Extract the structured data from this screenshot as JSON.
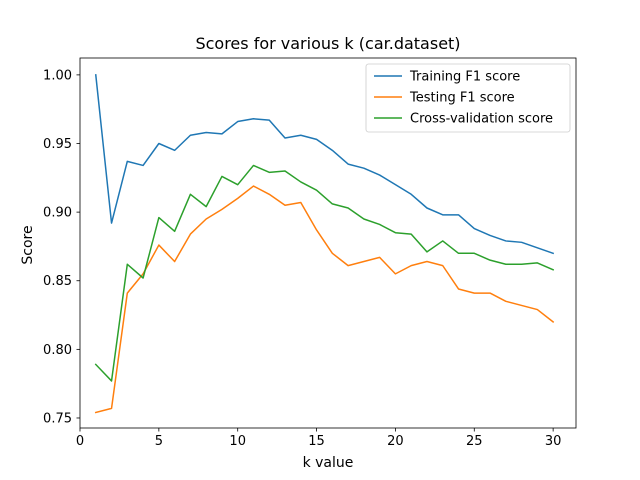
{
  "chart_data": {
    "type": "line",
    "title": "Scores for various k (car.dataset)",
    "xlabel": "k value",
    "ylabel": "Score",
    "xlim": [
      0,
      31.45
    ],
    "ylim": [
      0.7427,
      1.0123
    ],
    "xticks": [
      0,
      5,
      10,
      15,
      20,
      25,
      30
    ],
    "yticks": [
      0.75,
      0.8,
      0.85,
      0.9,
      0.95,
      1.0
    ],
    "ytick_labels": [
      "0.75",
      "0.80",
      "0.85",
      "0.90",
      "0.95",
      "1.00"
    ],
    "legend_position": "top-right",
    "grid": false,
    "x": [
      1,
      2,
      3,
      4,
      5,
      6,
      7,
      8,
      9,
      10,
      11,
      12,
      13,
      14,
      15,
      16,
      17,
      18,
      19,
      20,
      21,
      22,
      23,
      24,
      25,
      26,
      27,
      28,
      29,
      30
    ],
    "series": [
      {
        "name": "Training F1 score",
        "color": "#1f77b4",
        "values": [
          1.0,
          0.892,
          0.937,
          0.934,
          0.95,
          0.945,
          0.956,
          0.958,
          0.957,
          0.966,
          0.968,
          0.967,
          0.954,
          0.956,
          0.953,
          0.945,
          0.935,
          0.932,
          0.927,
          0.92,
          0.913,
          0.903,
          0.898,
          0.898,
          0.888,
          0.883,
          0.879,
          0.878,
          0.874,
          0.87
        ]
      },
      {
        "name": "Testing F1 score",
        "color": "#ff7f0e",
        "values": [
          0.754,
          0.757,
          0.841,
          0.855,
          0.876,
          0.864,
          0.884,
          0.895,
          0.902,
          0.91,
          0.919,
          0.913,
          0.905,
          0.907,
          0.887,
          0.87,
          0.861,
          0.864,
          0.867,
          0.855,
          0.861,
          0.864,
          0.861,
          0.844,
          0.841,
          0.841,
          0.835,
          0.832,
          0.829,
          0.82
        ]
      },
      {
        "name": "Cross-validation score",
        "color": "#2ca02c",
        "values": [
          0.789,
          0.777,
          0.862,
          0.852,
          0.896,
          0.886,
          0.913,
          0.904,
          0.926,
          0.92,
          0.934,
          0.929,
          0.93,
          0.922,
          0.916,
          0.906,
          0.903,
          0.895,
          0.891,
          0.885,
          0.884,
          0.871,
          0.879,
          0.87,
          0.87,
          0.865,
          0.862,
          0.862,
          0.863,
          0.858
        ]
      }
    ]
  }
}
